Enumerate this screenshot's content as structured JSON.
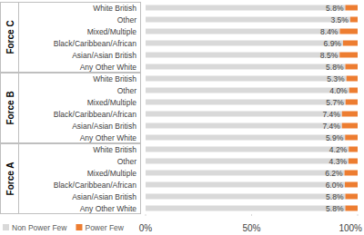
{
  "chart_data": {
    "type": "bar",
    "orientation": "horizontal",
    "stacked": true,
    "data_labels": true,
    "groups": [
      "Force C",
      "Force B",
      "Force A"
    ],
    "categories": [
      "White British",
      "Other",
      "Mixed/Multiple",
      "Black/Caribbean/African",
      "Asian/Asian British",
      "Any Other White",
      "White British",
      "Other",
      "Mixed/Multiple",
      "Black/Caribbean/African",
      "Asian/Asian British",
      "Any Other White",
      "White British",
      "Other",
      "Mixed/Multiple",
      "Black/Caribbean/African",
      "Asian/Asian British",
      "Any Other White"
    ],
    "series": [
      {
        "name": "Non Power Few",
        "color": "#d9d9d9",
        "values": [
          94.2,
          96.5,
          91.6,
          93.1,
          91.5,
          94.2,
          94.7,
          96.0,
          94.3,
          92.6,
          92.6,
          94.1,
          95.8,
          95.7,
          93.8,
          94.0,
          94.2,
          94.2
        ]
      },
      {
        "name": "Power Few",
        "color": "#ed7d31",
        "values": [
          5.8,
          3.5,
          8.4,
          6.9,
          8.5,
          5.8,
          5.3,
          4.0,
          5.7,
          7.4,
          7.4,
          5.9,
          4.2,
          4.3,
          6.2,
          6.0,
          5.8,
          5.8
        ],
        "value_labels": [
          "5.8%",
          "3.5%",
          "8.4%",
          "6.9%",
          "8.5%",
          "5.8%",
          "5.3%",
          "4.0%",
          "5.7%",
          "7.4%",
          "7.4%",
          "5.9%",
          "4.2%",
          "4.3%",
          "6.2%",
          "6.0%",
          "5.8%",
          "5.8%"
        ]
      }
    ],
    "xlim": [
      0,
      100
    ],
    "xticks": [
      {
        "value": 0,
        "label": "0%"
      },
      {
        "value": 50,
        "label": "50%"
      },
      {
        "value": 100,
        "label": "100%"
      }
    ],
    "legend": "bottom-left"
  }
}
